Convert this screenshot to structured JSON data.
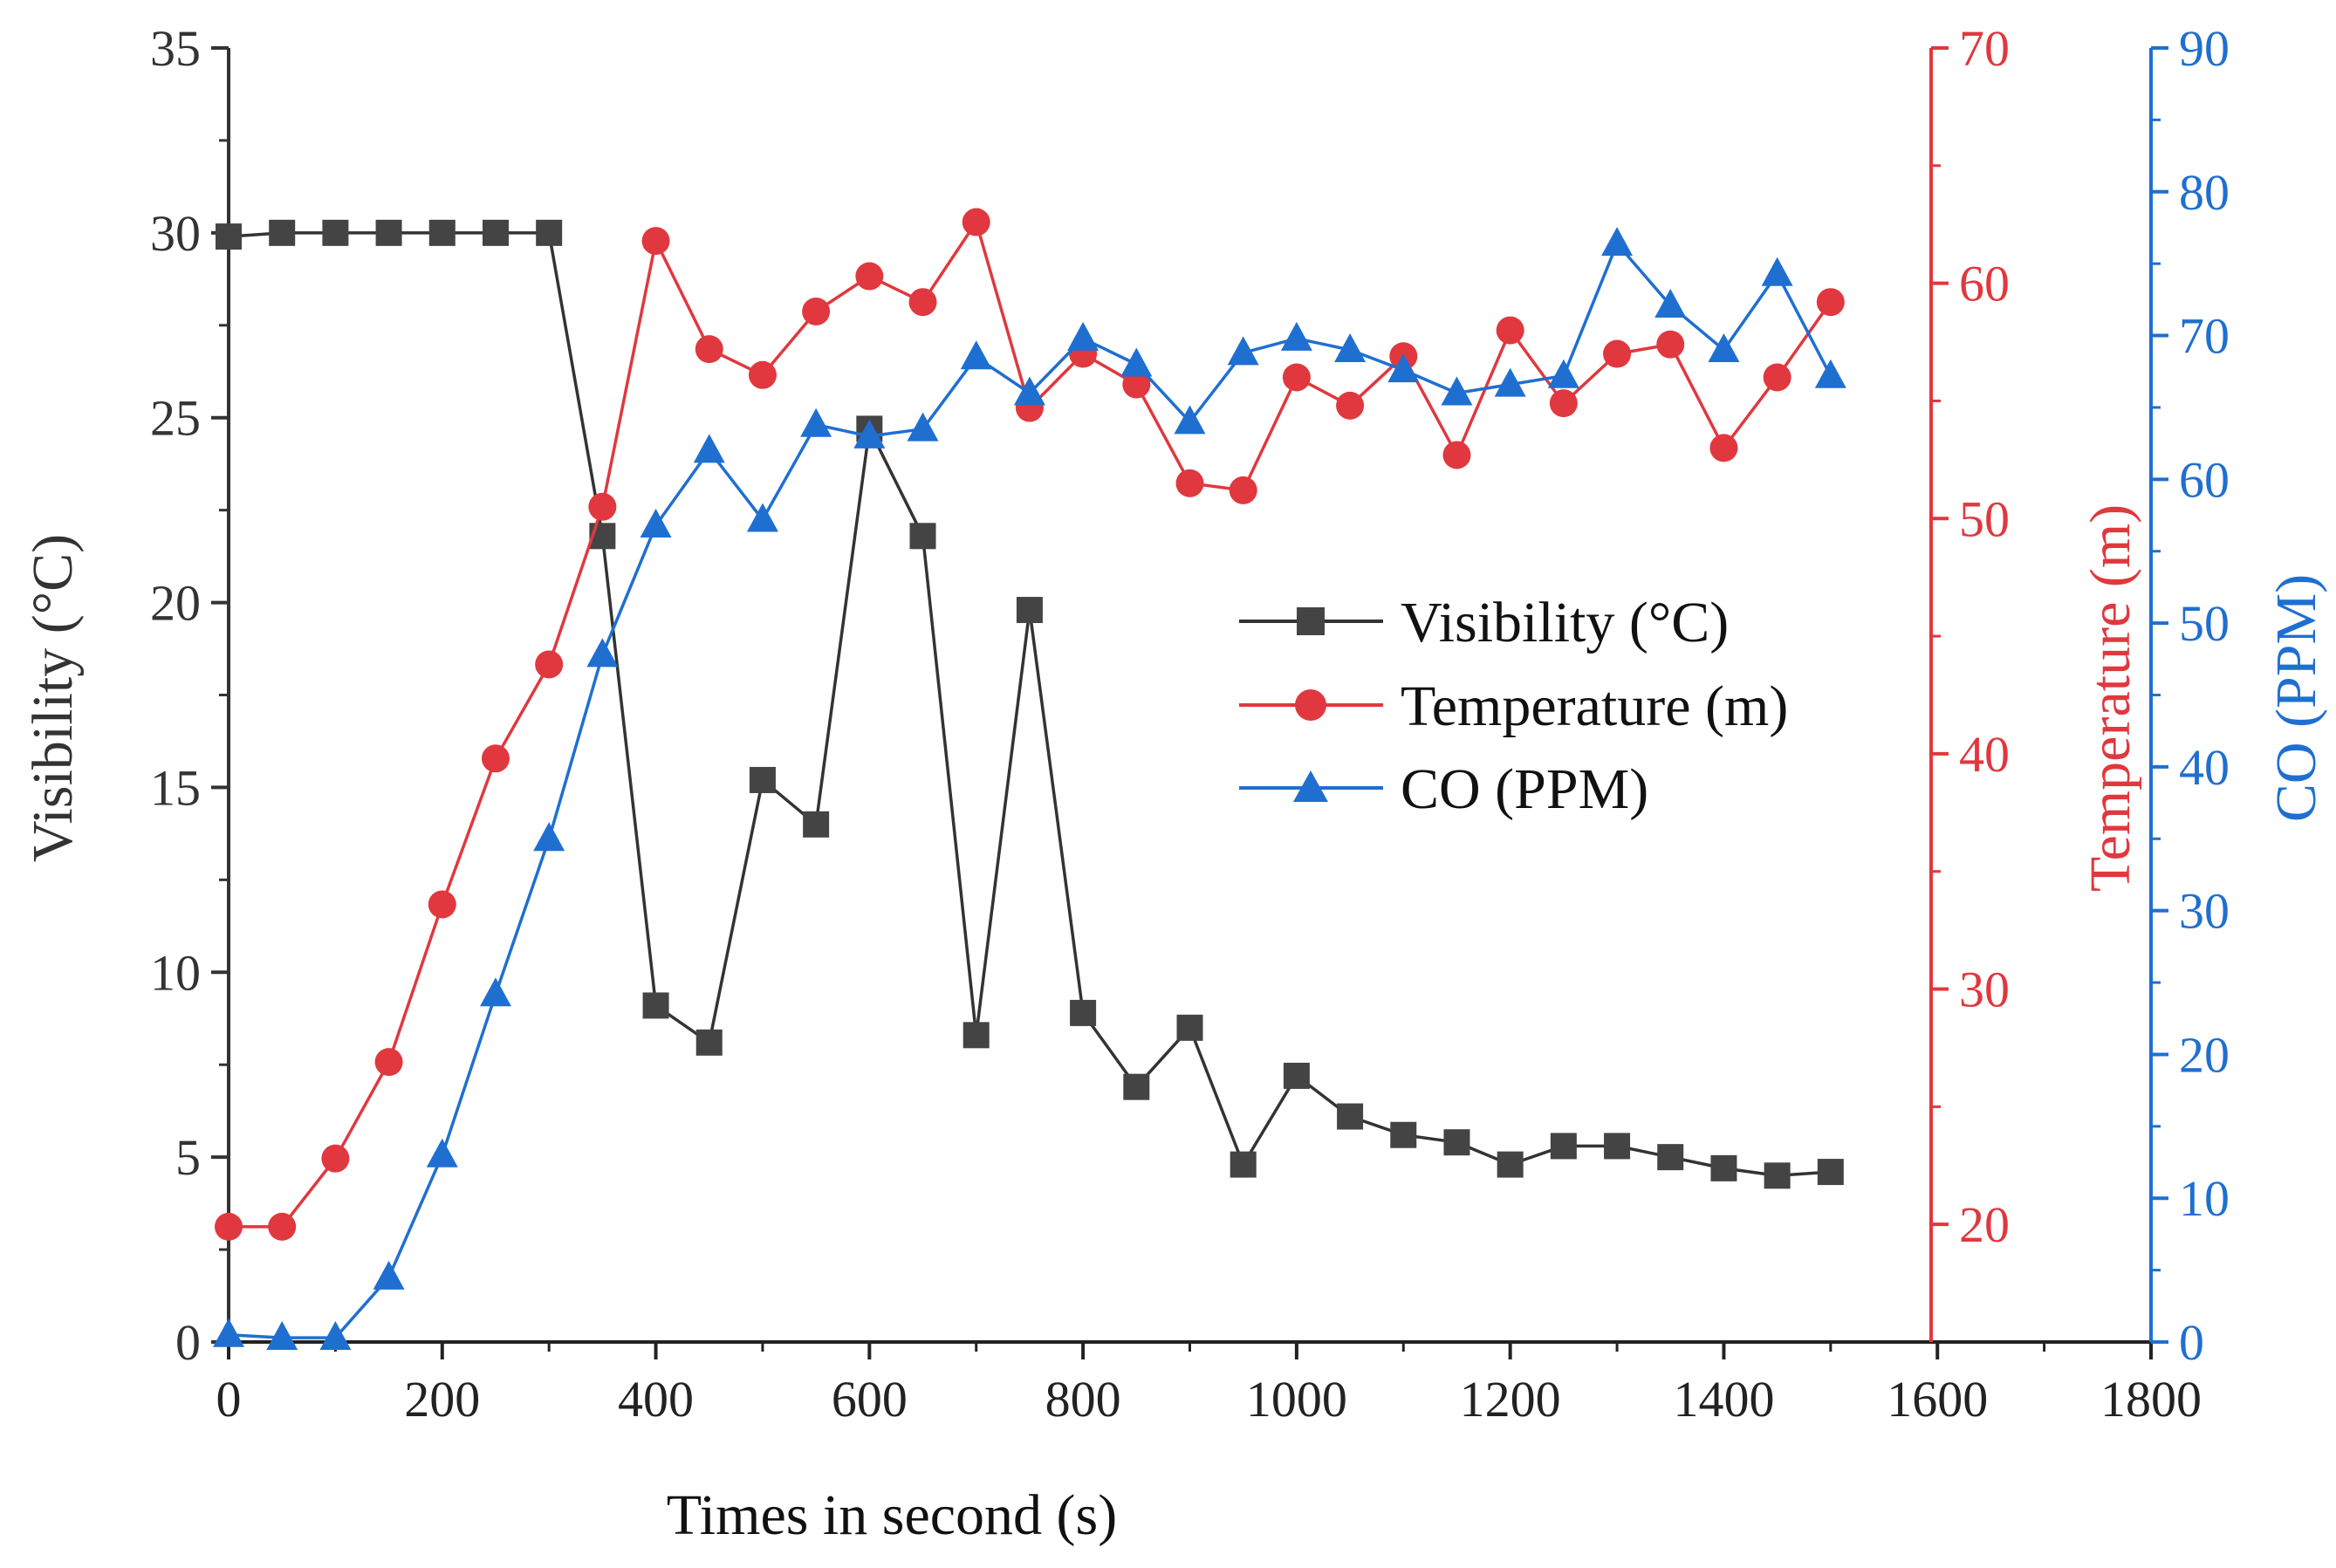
{
  "chart_data": {
    "type": "line",
    "title": "",
    "xlabel": "Times in second (s)",
    "xlim": [
      0,
      1800
    ],
    "xticks": [
      0,
      200,
      400,
      600,
      800,
      1000,
      1200,
      1400,
      1600,
      1800
    ],
    "x": [
      0,
      50,
      100,
      150,
      200,
      250,
      300,
      350,
      400,
      450,
      500,
      550,
      600,
      650,
      700,
      750,
      800,
      850,
      900,
      950,
      1000,
      1050,
      1100,
      1150,
      1200,
      1250,
      1300,
      1350,
      1400,
      1450,
      1500
    ],
    "grid": false,
    "legend_position": "center-right",
    "axes": {
      "left": {
        "label": "Visibility (°C)",
        "ylim": [
          0,
          35
        ],
        "ticks": [
          0,
          5,
          10,
          15,
          20,
          25,
          30,
          35
        ],
        "color": "#333333"
      },
      "right1": {
        "label": "Temperature (m)",
        "ylim": [
          15,
          70
        ],
        "ticks": [
          20,
          30,
          40,
          50,
          60,
          70
        ],
        "color": "#e0383e"
      },
      "right2": {
        "label": "CO (PPM)",
        "ylim": [
          0,
          90
        ],
        "ticks": [
          0,
          10,
          20,
          30,
          40,
          50,
          60,
          70,
          80,
          90
        ],
        "color": "#1f6fd1"
      }
    },
    "series": [
      {
        "name": "Visibility (°C)",
        "axis": "left",
        "marker": "square",
        "color": "#333333",
        "values": [
          29.9,
          30.0,
          30.0,
          30.0,
          30.0,
          30.0,
          30.0,
          21.8,
          9.1,
          8.1,
          15.2,
          14.0,
          24.7,
          21.8,
          8.3,
          19.8,
          8.9,
          6.9,
          8.5,
          4.8,
          7.2,
          6.1,
          5.6,
          5.4,
          4.8,
          5.3,
          5.3,
          5.0,
          4.7,
          4.5,
          4.6
        ]
      },
      {
        "name": "Temperature (m)",
        "axis": "right1",
        "marker": "circle",
        "color": "#e0383e",
        "values": [
          19.9,
          19.9,
          22.8,
          26.9,
          33.6,
          39.8,
          43.8,
          50.5,
          61.8,
          57.2,
          56.1,
          58.8,
          60.3,
          59.2,
          62.6,
          54.7,
          57.0,
          55.7,
          51.5,
          51.2,
          56.0,
          54.8,
          56.9,
          52.7,
          58.0,
          54.9,
          57.0,
          57.4,
          53.0,
          56.0,
          59.2
        ]
      },
      {
        "name": "CO (PPM)",
        "axis": "right2",
        "marker": "triangle",
        "color": "#1f6fd1",
        "values": [
          0.5,
          0.3,
          0.3,
          4.5,
          13.0,
          24.2,
          35.0,
          47.8,
          56.8,
          62.0,
          57.2,
          63.8,
          63.0,
          63.5,
          68.5,
          66.0,
          69.8,
          68.0,
          64.0,
          68.8,
          69.8,
          69.0,
          67.6,
          66.0,
          66.6,
          67.2,
          76.4,
          72.1,
          69.0,
          74.3,
          67.2
        ]
      }
    ]
  }
}
